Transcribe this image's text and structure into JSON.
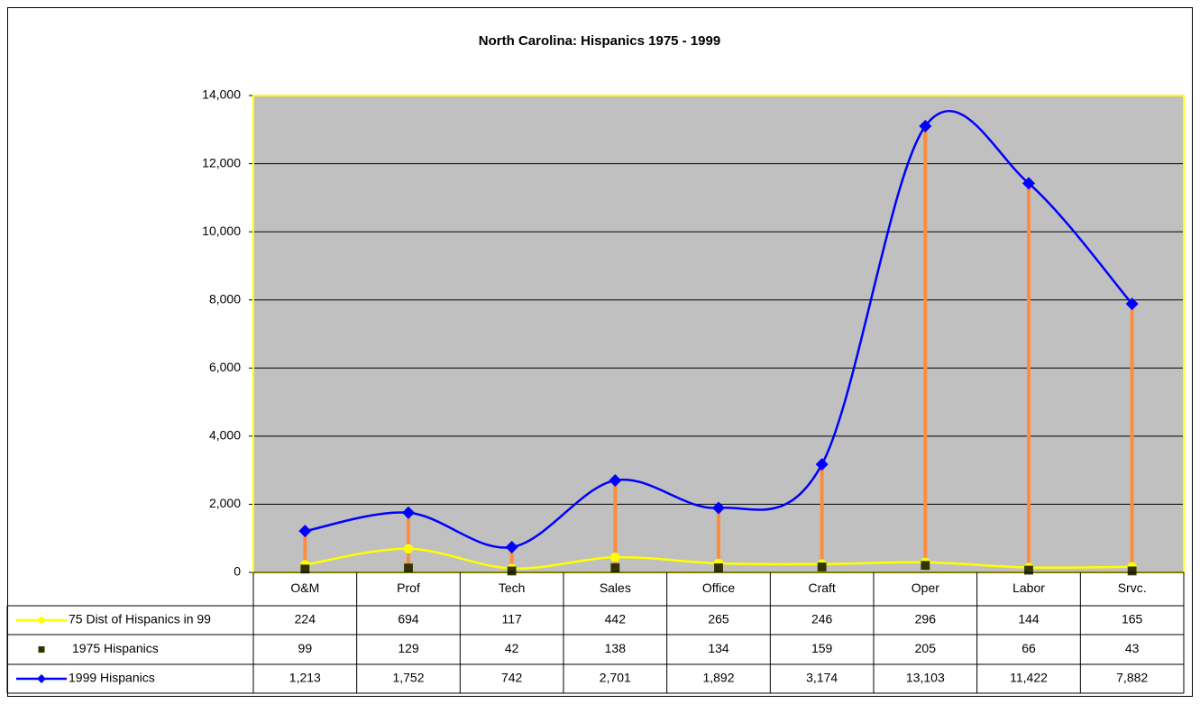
{
  "chart_data": {
    "type": "line",
    "title": "North Carolina: Hispanics 1975 - 1999",
    "categories": [
      "O&M",
      "Prof",
      "Tech",
      "Sales",
      "Office",
      "Craft",
      "Oper",
      "Labor",
      "Srvc."
    ],
    "series": [
      {
        "name": "75 Dist of Hispanics in 99",
        "color": "#ffff00",
        "marker": "circle",
        "line": true,
        "values": [
          224,
          694,
          117,
          442,
          265,
          246,
          296,
          144,
          165
        ]
      },
      {
        "name": "1975 Hispanics",
        "color": "#333300",
        "marker": "square",
        "line": false,
        "values": [
          99,
          129,
          42,
          138,
          134,
          159,
          205,
          66,
          43
        ]
      },
      {
        "name": "1999 Hispanics",
        "color": "#0000ff",
        "marker": "diamond",
        "line": true,
        "values": [
          1213,
          1752,
          742,
          2701,
          1892,
          3174,
          13103,
          11422,
          7882
        ],
        "value_labels": [
          "1,213",
          "1,752",
          "742",
          "2,701",
          "1,892",
          "3,174",
          "13,103",
          "11,422",
          "7,882"
        ]
      }
    ],
    "ylim": [
      0,
      14000
    ],
    "yticks": [
      0,
      {
        "value": 2000,
        "label": "2,000"
      },
      {
        "value": 4000,
        "label": "4,000"
      },
      {
        "value": 6000,
        "label": "6,000"
      },
      {
        "value": 8000,
        "label": "8,000"
      },
      {
        "value": 10000,
        "label": "10,000"
      },
      {
        "value": 12000,
        "label": "12,000"
      },
      {
        "value": 14000,
        "label": "14,000"
      }
    ],
    "grid": true,
    "smooth": true,
    "drop_lines_color": "#ff8c3c",
    "plot_background": "#c0c0c0",
    "plot_border": "#ffff00"
  }
}
